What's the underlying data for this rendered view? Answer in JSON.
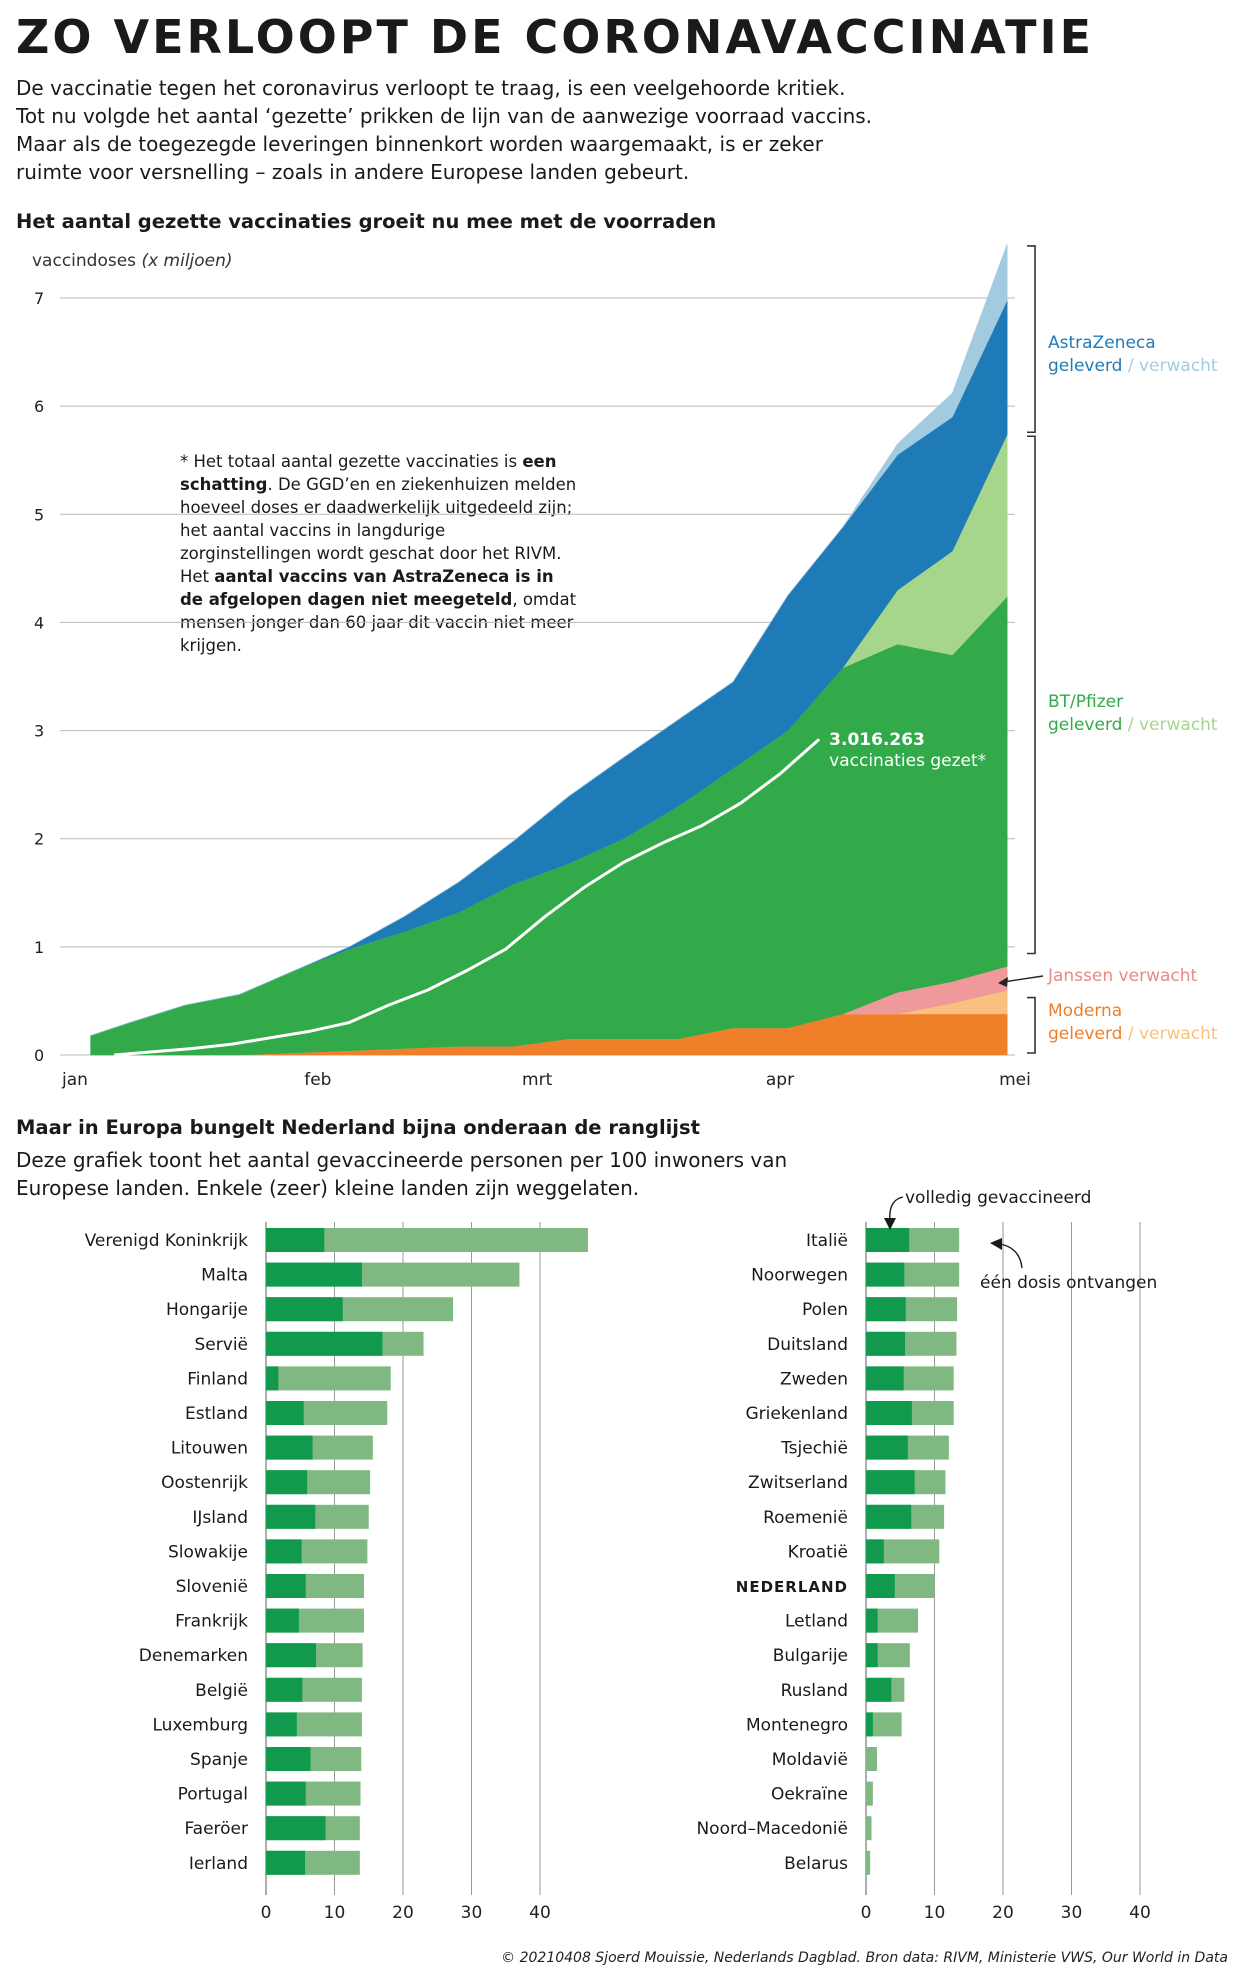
{
  "title": "ZO VERLOOPT DE CORONAVACCINATIE",
  "intro": "De vaccinatie tegen het coronavirus verloopt te traag, is een veelgehoorde kritiek. Tot nu volgde het aantal ‘gezette’ prikken de lijn van de aanwezige voorraad vaccins. Maar als de toegezegde leveringen binnenkort worden waargemaakt, is er zeker ruimte voor versnelling – zoals in andere Europese landen gebeurt.",
  "note": {
    "p1": "* Het totaal aantal gezette vaccinaties is ",
    "b1": "een schatting",
    "p2": ". De GGD’en en ziekenhuizen melden hoeveel doses er daadwerkelijk uitgedeeld zijn; het aantal vaccins in langdurige zorginstellingen wordt geschat door het RIVM. Het ",
    "b2": "aantal vaccins van AstraZeneca is in de afgelopen dagen niet meegeteld",
    "p3": ", omdat mensen jonger dan 60 jaar dit vaccin niet meer krijgen."
  },
  "colors": {
    "astra_delivered": "#1f7bb8",
    "astra_expected": "#a3cbe0",
    "pfizer_delivered": "#33aa4a",
    "pfizer_expected": "#a6d58c",
    "janssen": "#f0999b",
    "moderna_delivered": "#f07f2a",
    "moderna_expected": "#f9c07f",
    "line": "#ffffff",
    "full": "#119a4e",
    "one": "#80b882"
  },
  "chart_data": [
    {
      "type": "area",
      "title": "Het aantal gezette vaccinaties groeit nu mee met de voorraden",
      "ylabel": "vaccindoses",
      "ylabel_unit": "(x miljoen)",
      "ylim": [
        0,
        7.5
      ],
      "yticks": [
        0,
        1,
        2,
        3,
        4,
        5,
        6,
        7
      ],
      "xlim": [
        0,
        120
      ],
      "xticks": [
        {
          "label": "jan",
          "t": 0
        },
        {
          "label": "feb",
          "t": 31
        },
        {
          "label": "mrt",
          "t": 59
        },
        {
          "label": "apr",
          "t": 90
        },
        {
          "label": "mei",
          "t": 120
        }
      ],
      "x": [
        2,
        7,
        14,
        21,
        28,
        35,
        42,
        49,
        56,
        63,
        70,
        77,
        84,
        91,
        98,
        105,
        112,
        119
      ],
      "series": [
        {
          "name": "Moderna geleverd",
          "values": [
            0,
            0,
            0,
            0,
            0.02,
            0.04,
            0.06,
            0.08,
            0.08,
            0.15,
            0.15,
            0.15,
            0.25,
            0.25,
            0.38,
            0.38,
            0.38,
            0.38
          ]
        },
        {
          "name": "Moderna verwacht",
          "values": [
            0,
            0,
            0,
            0,
            0,
            0,
            0,
            0,
            0,
            0,
            0,
            0,
            0,
            0,
            0,
            0,
            0.1,
            0.22
          ]
        },
        {
          "name": "Janssen verwacht",
          "values": [
            0,
            0,
            0,
            0,
            0,
            0,
            0,
            0,
            0,
            0,
            0,
            0,
            0,
            0,
            0,
            0.2,
            0.2,
            0.22
          ]
        },
        {
          "name": "BT/Pfizer geleverd",
          "values": [
            0.18,
            0.3,
            0.46,
            0.56,
            0.76,
            0.94,
            1.08,
            1.24,
            1.5,
            1.62,
            1.85,
            2.15,
            2.4,
            2.75,
            3.2,
            3.22,
            3.02,
            3.42
          ]
        },
        {
          "name": "BT/Pfizer verwacht",
          "values": [
            0,
            0,
            0,
            0,
            0,
            0,
            0,
            0,
            0,
            0,
            0,
            0,
            0,
            0,
            0,
            0.5,
            0.96,
            1.5
          ]
        },
        {
          "name": "AstraZeneca geleverd",
          "values": [
            0,
            0,
            0,
            0,
            0,
            0.02,
            0.14,
            0.28,
            0.4,
            0.62,
            0.75,
            0.8,
            0.8,
            1.25,
            1.3,
            1.25,
            1.24,
            1.24
          ]
        },
        {
          "name": "AstraZeneca verwacht",
          "values": [
            0,
            0,
            0,
            0,
            0,
            0,
            0,
            0,
            0,
            0,
            0,
            0,
            0,
            0,
            0,
            0.1,
            0.22,
            0.52
          ]
        }
      ],
      "administered": {
        "x": [
          5,
          10,
          15,
          20,
          25,
          30,
          35,
          40,
          45,
          50,
          55,
          60,
          65,
          70,
          75,
          80,
          85,
          90,
          95
        ],
        "values": [
          0,
          0.03,
          0.06,
          0.1,
          0.16,
          0.22,
          0.3,
          0.46,
          0.6,
          0.78,
          0.98,
          1.28,
          1.55,
          1.78,
          1.96,
          2.12,
          2.33,
          2.6,
          2.92
        ],
        "label_value": "3.016.263",
        "label_text": "vaccinaties gezet*"
      },
      "legend": {
        "astra": "AstraZeneca",
        "pfizer": "BT/Pfizer",
        "janssen": "Janssen verwacht",
        "moderna": "Moderna",
        "delivered": "geleverd",
        "expected": "verwacht",
        "separator": " / "
      }
    },
    {
      "type": "bar",
      "title": "Maar in Europa bungelt Nederland bijna onderaan de ranglijst",
      "description": "Deze grafiek toont het aantal gevaccineerde personen per 100 inwoners van Europese landen. Enkele (zeer) kleine landen zijn weggelaten.",
      "xlim": [
        0,
        45
      ],
      "xticks": [
        0,
        10,
        20,
        30,
        40
      ],
      "annotation_full": "volledig gevaccineerd",
      "annotation_one": "één dosis ontvangen",
      "highlight": "NEDERLAND",
      "columns": [
        {
          "categories": [
            "Verenigd Koninkrijk",
            "Malta",
            "Hongarije",
            "Servië",
            "Finland",
            "Estland",
            "Litouwen",
            "Oostenrijk",
            "IJsland",
            "Slowakije",
            "Slovenië",
            "Frankrijk",
            "Denemarken",
            "België",
            "Luxemburg",
            "Spanje",
            "Portugal",
            "Faeröer",
            "Ierland"
          ],
          "full": [
            8.5,
            14,
            11.2,
            17,
            1.8,
            5.5,
            6.8,
            6,
            7.2,
            5.2,
            5.8,
            4.8,
            7.3,
            5.3,
            4.5,
            6.5,
            5.8,
            8.7,
            5.7
          ],
          "total": [
            47,
            37,
            27.3,
            23,
            18.2,
            17.7,
            15.6,
            15.2,
            15,
            14.8,
            14.3,
            14.3,
            14.1,
            14,
            14,
            13.9,
            13.8,
            13.7,
            13.7
          ]
        },
        {
          "categories": [
            "Italië",
            "Noorwegen",
            "Polen",
            "Duitsland",
            "Zweden",
            "Griekenland",
            "Tsjechië",
            "Zwitserland",
            "Roemenië",
            "Kroatië",
            "NEDERLAND",
            "Letland",
            "Bulgarije",
            "Rusland",
            "Montenegro",
            "Moldavië",
            "Oekraïne",
            "Noord–Macedonië",
            "Belarus"
          ],
          "full": [
            6.3,
            5.6,
            5.8,
            5.7,
            5.5,
            6.7,
            6.1,
            7.1,
            6.6,
            2.6,
            4.2,
            1.7,
            1.7,
            3.7,
            1,
            0,
            0,
            0,
            0
          ],
          "total": [
            13.6,
            13.6,
            13.3,
            13.2,
            12.8,
            12.8,
            12.1,
            11.6,
            11.4,
            10.7,
            10,
            7.6,
            6.4,
            5.6,
            5.2,
            1.6,
            1,
            0.8,
            0.6
          ]
        }
      ]
    }
  ],
  "copyright": "© 20210408 Sjoerd Mouissie, Nederlands Dagblad. Bron data: RIVM, Ministerie VWS, Our World in Data"
}
